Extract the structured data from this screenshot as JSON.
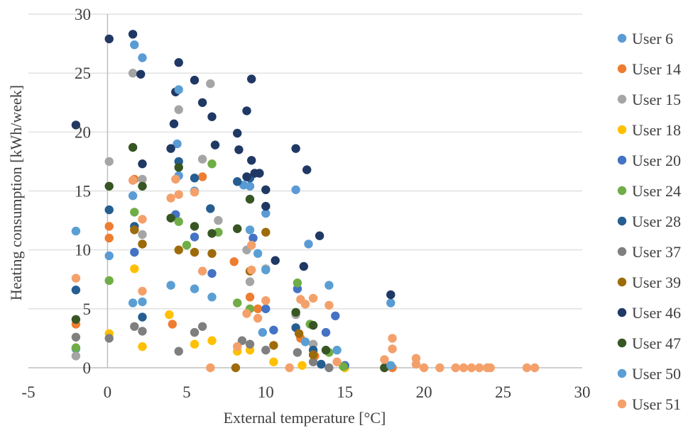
{
  "chart_data": {
    "type": "scatter",
    "title": "",
    "xlabel": "External temperature [°C]",
    "ylabel": "Heating consumption [kWh/week]",
    "xlim": [
      -5,
      30
    ],
    "ylim": [
      0,
      30
    ],
    "xticks": [
      -5,
      0,
      5,
      10,
      15,
      20,
      25,
      30
    ],
    "yticks": [
      0,
      5,
      10,
      15,
      20,
      25,
      30
    ],
    "grid": "horizontal",
    "legend_position": "right",
    "series": [
      {
        "name": "User 6",
        "color": "#5b9bd5",
        "points": [
          [
            -2,
            1.6
          ],
          [
            0.1,
            9.5
          ],
          [
            1.7,
            27.4
          ],
          [
            2.2,
            26.3
          ],
          [
            1.6,
            14.6
          ],
          [
            4.4,
            19.0
          ],
          [
            4.5,
            16.3
          ],
          [
            5.5,
            15.0
          ],
          [
            8.6,
            15.5
          ],
          [
            9.0,
            15.4
          ],
          [
            10.0,
            13.1
          ],
          [
            11.9,
            15.1
          ],
          [
            12.7,
            10.5
          ],
          [
            17.9,
            5.5
          ],
          [
            9.8,
            3.0
          ]
        ]
      },
      {
        "name": "User 14",
        "color": "#ed7d31",
        "points": [
          [
            -2,
            3.7
          ],
          [
            0.1,
            12.0
          ],
          [
            0.1,
            11.0
          ],
          [
            1.7,
            16.0
          ],
          [
            4.1,
            3.7
          ],
          [
            6.0,
            16.2
          ],
          [
            8.0,
            9.0
          ],
          [
            9.0,
            6.0
          ],
          [
            9.5,
            5.0
          ],
          [
            12.2,
            2.5
          ],
          [
            13.1,
            1.0
          ],
          [
            15.0,
            0.2
          ],
          [
            17.5,
            0
          ],
          [
            18.0,
            0
          ]
        ]
      },
      {
        "name": "User 15",
        "color": "#a5a5a5",
        "points": [
          [
            -2,
            1.0
          ],
          [
            0.1,
            17.5
          ],
          [
            1.6,
            25.0
          ],
          [
            2.2,
            16.0
          ],
          [
            2.2,
            11.3
          ],
          [
            4.5,
            21.9
          ],
          [
            6.5,
            24.1
          ],
          [
            6.0,
            17.7
          ],
          [
            7.0,
            12.5
          ],
          [
            8.8,
            10.0
          ],
          [
            9.0,
            7.3
          ],
          [
            10.0,
            8.4
          ],
          [
            11.9,
            4.5
          ],
          [
            13.0,
            2.0
          ]
        ]
      },
      {
        "name": "User 18",
        "color": "#ffc000",
        "points": [
          [
            0.1,
            2.9
          ],
          [
            1.7,
            8.4
          ],
          [
            2.2,
            1.8
          ],
          [
            3.9,
            4.5
          ],
          [
            5.5,
            2.0
          ],
          [
            6.6,
            2.3
          ],
          [
            8.2,
            1.4
          ],
          [
            9.0,
            1.5
          ],
          [
            10.5,
            0.5
          ],
          [
            12.3,
            0.2
          ],
          [
            15.0,
            0
          ]
        ]
      },
      {
        "name": "User 20",
        "color": "#4472c4",
        "points": [
          [
            1.7,
            9.8
          ],
          [
            4.3,
            13.0
          ],
          [
            5.5,
            11.1
          ],
          [
            6.6,
            8.0
          ],
          [
            9.2,
            11.0
          ],
          [
            10.0,
            5.0
          ],
          [
            10.5,
            3.2
          ],
          [
            12.0,
            6.7
          ],
          [
            13.8,
            3.0
          ],
          [
            14.4,
            4.4
          ],
          [
            15.0,
            0.2
          ]
        ]
      },
      {
        "name": "User 24",
        "color": "#70ad47",
        "points": [
          [
            -2,
            1.7
          ],
          [
            0.1,
            7.4
          ],
          [
            1.7,
            13.2
          ],
          [
            2.2,
            10.5
          ],
          [
            4.5,
            12.4
          ],
          [
            5.0,
            10.4
          ],
          [
            6.6,
            17.3
          ],
          [
            7.0,
            11.5
          ],
          [
            8.2,
            5.5
          ],
          [
            9.0,
            5.0
          ],
          [
            12.0,
            7.2
          ],
          [
            12.8,
            3.7
          ],
          [
            14.0,
            1.3
          ],
          [
            14.9,
            0.1
          ]
        ]
      },
      {
        "name": "User 28",
        "color": "#255e91",
        "points": [
          [
            -2,
            6.6
          ],
          [
            0.1,
            13.4
          ],
          [
            1.7,
            12.0
          ],
          [
            2.2,
            4.3
          ],
          [
            4.5,
            17.5
          ],
          [
            5.5,
            16.1
          ],
          [
            6.5,
            13.5
          ],
          [
            8.2,
            15.8
          ],
          [
            9.0,
            16.1
          ],
          [
            11.9,
            3.4
          ],
          [
            13.0,
            1.5
          ],
          [
            13.5,
            0.3
          ]
        ]
      },
      {
        "name": "User 37",
        "color": "#7f7f7f",
        "points": [
          [
            -2,
            2.6
          ],
          [
            0.1,
            2.5
          ],
          [
            1.7,
            3.5
          ],
          [
            2.2,
            3.1
          ],
          [
            4.5,
            1.4
          ],
          [
            5.5,
            3.0
          ],
          [
            6.0,
            3.5
          ],
          [
            8.5,
            2.3
          ],
          [
            9.0,
            2.0
          ],
          [
            10.0,
            1.5
          ],
          [
            12.0,
            1.3
          ],
          [
            13.0,
            0.5
          ],
          [
            14.0,
            0
          ]
        ]
      },
      {
        "name": "User 39",
        "color": "#9e6b0a",
        "points": [
          [
            1.7,
            11.7
          ],
          [
            2.2,
            10.5
          ],
          [
            4.5,
            10.0
          ],
          [
            5.5,
            9.8
          ],
          [
            6.6,
            9.7
          ],
          [
            8.1,
            0.0
          ],
          [
            9.0,
            8.2
          ],
          [
            10.0,
            11.5
          ],
          [
            10.5,
            1.9
          ],
          [
            12.1,
            2.9
          ],
          [
            13.0,
            1.1
          ]
        ]
      },
      {
        "name": "User 46",
        "color": "#203864",
        "points": [
          [
            -2,
            20.6
          ],
          [
            0.1,
            27.9
          ],
          [
            1.6,
            28.3
          ],
          [
            2.2,
            17.3
          ],
          [
            2.1,
            24.9
          ],
          [
            4.5,
            25.9
          ],
          [
            4.3,
            23.4
          ],
          [
            4.0,
            18.6
          ],
          [
            4.2,
            20.7
          ],
          [
            5.5,
            24.4
          ],
          [
            6.0,
            22.5
          ],
          [
            6.6,
            21.3
          ],
          [
            6.8,
            18.9
          ],
          [
            8.2,
            19.9
          ],
          [
            8.8,
            21.8
          ],
          [
            9.1,
            24.5
          ],
          [
            9.1,
            17.6
          ],
          [
            8.3,
            18.5
          ],
          [
            9.6,
            16.5
          ],
          [
            9.3,
            16.5
          ],
          [
            8.8,
            16.2
          ],
          [
            10.0,
            15.1
          ],
          [
            10.0,
            13.7
          ],
          [
            10.6,
            9.1
          ],
          [
            11.9,
            18.6
          ],
          [
            12.6,
            16.8
          ],
          [
            13.4,
            11.2
          ],
          [
            12.4,
            8.6
          ],
          [
            17.9,
            6.2
          ]
        ]
      },
      {
        "name": "User 47",
        "color": "#375623",
        "points": [
          [
            -2,
            4.1
          ],
          [
            0.1,
            15.4
          ],
          [
            1.6,
            18.7
          ],
          [
            2.2,
            15.4
          ],
          [
            4.0,
            12.7
          ],
          [
            4.5,
            17.0
          ],
          [
            5.5,
            12.0
          ],
          [
            6.6,
            11.4
          ],
          [
            8.2,
            11.8
          ],
          [
            9.0,
            14.3
          ],
          [
            11.9,
            4.7
          ],
          [
            13.0,
            3.6
          ],
          [
            13.8,
            1.5
          ],
          [
            17.5,
            0
          ]
        ]
      },
      {
        "name": "User 50",
        "color": "#5a9fd4",
        "points": [
          [
            -2,
            11.6
          ],
          [
            1.6,
            5.5
          ],
          [
            2.2,
            5.6
          ],
          [
            4.5,
            23.6
          ],
          [
            4.0,
            7.0
          ],
          [
            5.5,
            6.7
          ],
          [
            6.6,
            6.0
          ],
          [
            9.0,
            11.7
          ],
          [
            9.5,
            9.7
          ],
          [
            10.0,
            8.3
          ],
          [
            12.5,
            2.2
          ],
          [
            14.0,
            7.0
          ],
          [
            14.5,
            1.5
          ],
          [
            17.9,
            0.2
          ]
        ]
      },
      {
        "name": "User 51",
        "color": "#f4a06a",
        "points": [
          [
            -2,
            7.6
          ],
          [
            1.6,
            15.9
          ],
          [
            2.2,
            12.6
          ],
          [
            2.2,
            6.5
          ],
          [
            4.0,
            14.4
          ],
          [
            4.3,
            16.0
          ],
          [
            4.5,
            14.7
          ],
          [
            5.5,
            14.9
          ],
          [
            6.0,
            8.2
          ],
          [
            6.5,
            0
          ],
          [
            8.2,
            1.8
          ],
          [
            8.8,
            4.6
          ],
          [
            9.1,
            10.4
          ],
          [
            9.1,
            8.3
          ],
          [
            9.5,
            4.2
          ],
          [
            10.0,
            5.7
          ],
          [
            11.5,
            0
          ],
          [
            12.2,
            5.8
          ],
          [
            12.5,
            5.4
          ],
          [
            13.0,
            5.9
          ],
          [
            14.0,
            5.3
          ],
          [
            14.5,
            0.5
          ],
          [
            17.5,
            0.7
          ],
          [
            18.0,
            2.5
          ],
          [
            18.0,
            1.6
          ],
          [
            19.5,
            0.8
          ],
          [
            19.5,
            0.3
          ],
          [
            20.0,
            0
          ],
          [
            21.0,
            0
          ],
          [
            22.0,
            0
          ],
          [
            22.5,
            0
          ],
          [
            23.0,
            0
          ],
          [
            23.5,
            0
          ],
          [
            24.0,
            0
          ],
          [
            24.2,
            0
          ],
          [
            26.5,
            0
          ],
          [
            27.0,
            0
          ]
        ]
      }
    ]
  }
}
